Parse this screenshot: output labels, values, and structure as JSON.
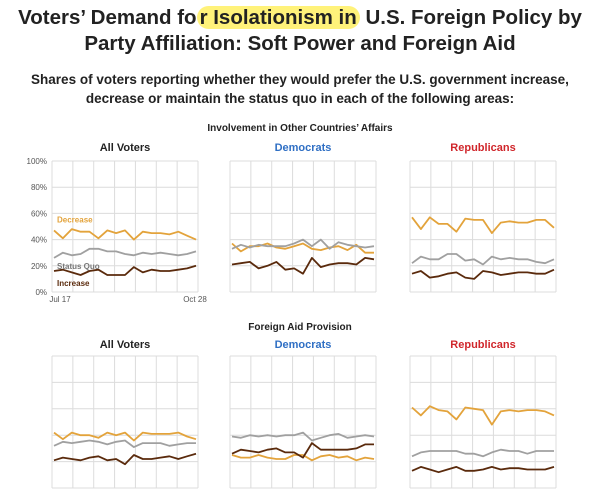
{
  "title": {
    "part1": "Voters’ Demand fo",
    "highlight": "r Isolationism in",
    "part2": " U.S. Foreign Policy by Party Affiliation: Soft Power and Foreign Aid"
  },
  "subtitle": "Shares of voters reporting whether they would prefer the U.S. government increase, decrease or maintain the status quo in each of the following areas:",
  "colors": {
    "decrease": "#e3a33b",
    "status_quo": "#a0a0a0",
    "increase": "#5a2a0c",
    "democrats_title": "#2f6fc4",
    "republicans_title": "#d0262b",
    "all_voters_title": "#222222",
    "grid": "#dcdcdc"
  },
  "chart_data": [
    {
      "type": "line",
      "section": "Involvement in Other Countries’ Affairs",
      "panel": "All Voters",
      "ylim": [
        0,
        100
      ],
      "y_ticks": [
        "0%",
        "20%",
        "40%",
        "60%",
        "80%",
        "100%"
      ],
      "x_start_label": "Jul 17",
      "x_end_label": "Oct 28",
      "series_labels": {
        "decrease": "Decrease",
        "status_quo": "Status Quo",
        "increase": "Increase"
      },
      "series": [
        {
          "name": "Decrease",
          "key": "decrease",
          "values": [
            47,
            41,
            48,
            46,
            46,
            41,
            47,
            45,
            47,
            40,
            46,
            45,
            45,
            44,
            46,
            43,
            40
          ]
        },
        {
          "name": "Status Quo",
          "key": "status_quo",
          "values": [
            26,
            30,
            28,
            29,
            33,
            33,
            31,
            31,
            29,
            28,
            30,
            29,
            30,
            29,
            28,
            29,
            31
          ]
        },
        {
          "name": "Increase",
          "key": "increase",
          "values": [
            16,
            17,
            15,
            13,
            16,
            17,
            13,
            13,
            13,
            19,
            15,
            17,
            16,
            16,
            17,
            18,
            20
          ]
        }
      ]
    },
    {
      "type": "line",
      "section": "Involvement in Other Countries’ Affairs",
      "panel": "Democrats",
      "ylim": [
        0,
        100
      ],
      "series": [
        {
          "key": "decrease",
          "values": [
            37,
            31,
            35,
            35,
            37,
            34,
            33,
            35,
            37,
            33,
            32,
            34,
            35,
            32,
            36,
            30,
            30
          ]
        },
        {
          "key": "status_quo",
          "values": [
            33,
            36,
            34,
            36,
            35,
            35,
            35,
            37,
            40,
            35,
            40,
            33,
            38,
            36,
            35,
            34,
            35
          ]
        },
        {
          "key": "increase",
          "values": [
            21,
            22,
            23,
            18,
            20,
            23,
            17,
            18,
            14,
            26,
            19,
            21,
            22,
            22,
            21,
            26,
            25
          ]
        }
      ]
    },
    {
      "type": "line",
      "section": "Involvement in Other Countries’ Affairs",
      "panel": "Republicans",
      "ylim": [
        0,
        100
      ],
      "series": [
        {
          "key": "decrease",
          "values": [
            57,
            48,
            57,
            52,
            52,
            46,
            56,
            55,
            55,
            45,
            53,
            54,
            53,
            53,
            55,
            55,
            49
          ]
        },
        {
          "key": "status_quo",
          "values": [
            22,
            27,
            25,
            25,
            29,
            29,
            24,
            25,
            21,
            27,
            25,
            26,
            25,
            25,
            23,
            22,
            25
          ]
        },
        {
          "key": "increase",
          "values": [
            14,
            16,
            11,
            12,
            14,
            15,
            11,
            10,
            16,
            15,
            13,
            14,
            15,
            15,
            14,
            14,
            17
          ]
        }
      ]
    },
    {
      "type": "line",
      "section": "Foreign Aid Provision",
      "panel": "All Voters",
      "ylim": [
        0,
        100
      ],
      "series": [
        {
          "key": "decrease",
          "values": [
            42,
            37,
            42,
            40,
            40,
            38,
            42,
            40,
            42,
            36,
            42,
            41,
            41,
            41,
            42,
            39,
            37
          ]
        },
        {
          "key": "status_quo",
          "values": [
            32,
            35,
            34,
            35,
            36,
            35,
            33,
            35,
            36,
            31,
            34,
            34,
            34,
            32,
            33,
            34,
            34
          ]
        },
        {
          "key": "increase",
          "values": [
            21,
            23,
            22,
            21,
            23,
            24,
            21,
            22,
            18,
            25,
            22,
            22,
            23,
            24,
            22,
            24,
            26
          ]
        }
      ]
    },
    {
      "type": "line",
      "section": "Foreign Aid Provision",
      "panel": "Democrats",
      "ylim": [
        0,
        100
      ],
      "series": [
        {
          "key": "decrease",
          "values": [
            25,
            23,
            23,
            25,
            23,
            22,
            22,
            25,
            25,
            21,
            24,
            25,
            23,
            24,
            21,
            23,
            22
          ]
        },
        {
          "key": "status_quo",
          "values": [
            39,
            38,
            40,
            39,
            40,
            39,
            40,
            40,
            42,
            36,
            38,
            40,
            41,
            38,
            39,
            40,
            39
          ]
        },
        {
          "key": "increase",
          "values": [
            26,
            29,
            28,
            27,
            29,
            30,
            27,
            27,
            23,
            34,
            29,
            29,
            29,
            29,
            30,
            33,
            33
          ]
        }
      ]
    },
    {
      "type": "line",
      "section": "Foreign Aid Provision",
      "panel": "Republicans",
      "ylim": [
        0,
        100
      ],
      "series": [
        {
          "key": "decrease",
          "values": [
            61,
            55,
            62,
            59,
            58,
            52,
            61,
            60,
            59,
            48,
            58,
            59,
            58,
            59,
            59,
            58,
            55
          ]
        },
        {
          "key": "status_quo",
          "values": [
            24,
            27,
            28,
            28,
            28,
            28,
            26,
            26,
            24,
            27,
            29,
            28,
            28,
            26,
            28,
            28,
            28
          ]
        },
        {
          "key": "increase",
          "values": [
            13,
            16,
            14,
            12,
            14,
            16,
            13,
            13,
            14,
            16,
            14,
            15,
            15,
            14,
            14,
            14,
            16
          ]
        }
      ]
    }
  ]
}
